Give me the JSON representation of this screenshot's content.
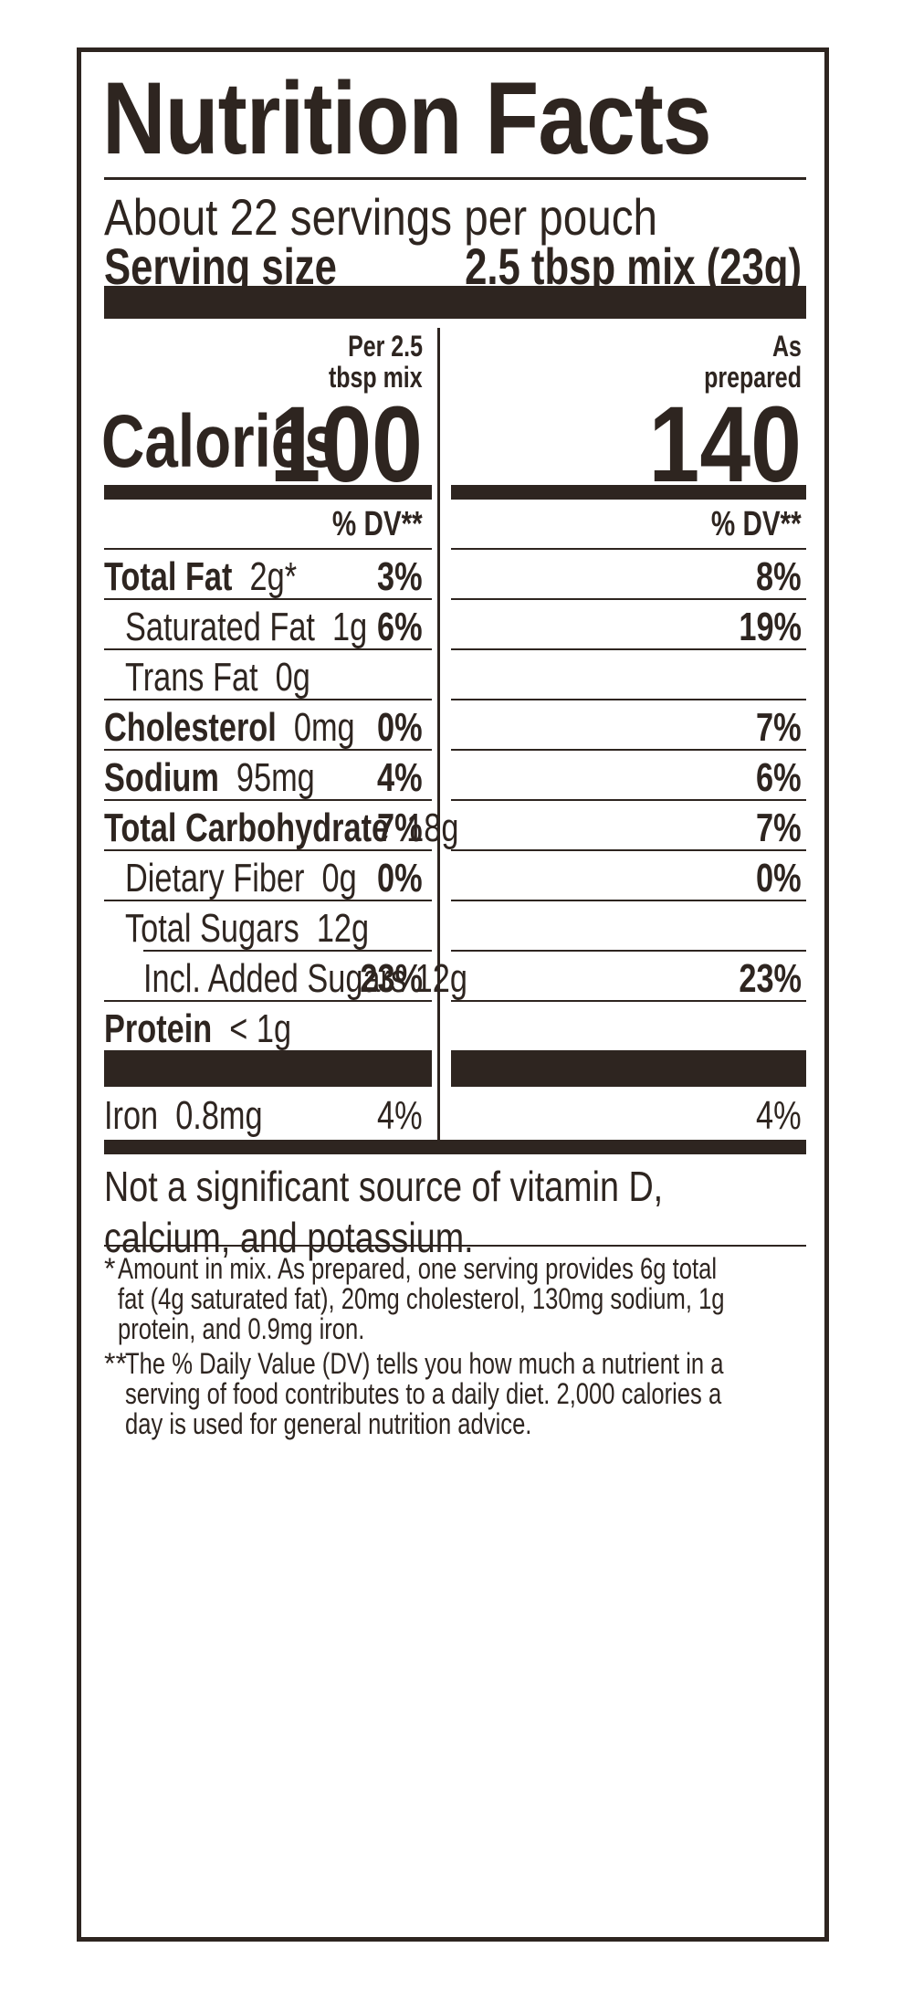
{
  "title": "Nutrition Facts",
  "servings_per_container": "About 22 servings per pouch",
  "serving_size": {
    "label": "Serving size",
    "value": "2.5 tbsp mix (23g)"
  },
  "columns": {
    "per_mix": {
      "header_line1": "Per 2.5",
      "header_line2": "tbsp mix",
      "calories": "100",
      "dv_header": "% DV**"
    },
    "prepared": {
      "header_line1": "As",
      "header_line2": "prepared",
      "calories": "140",
      "dv_header": "% DV**"
    }
  },
  "calories_label": "Calories",
  "nutrients": [
    {
      "name": "Total Fat",
      "amount": "2g*",
      "dv_mix": "3%",
      "dv_prepared": "8%"
    },
    {
      "name": "Saturated Fat",
      "amount": "1g",
      "dv_mix": "6%",
      "dv_prepared": "19%"
    },
    {
      "name": "Trans Fat",
      "amount": "0g",
      "dv_mix": "",
      "dv_prepared": ""
    },
    {
      "name": "Cholesterol",
      "amount": "0mg",
      "dv_mix": "0%",
      "dv_prepared": "7%"
    },
    {
      "name": "Sodium",
      "amount": "95mg",
      "dv_mix": "4%",
      "dv_prepared": "6%"
    },
    {
      "name": "Total Carbohydrate",
      "amount": "18g",
      "dv_mix": "7%",
      "dv_prepared": "7%"
    },
    {
      "name": "Dietary Fiber",
      "amount": "0g",
      "dv_mix": "0%",
      "dv_prepared": "0%"
    },
    {
      "name": "Total Sugars",
      "amount": "12g",
      "dv_mix": "",
      "dv_prepared": ""
    },
    {
      "name": "Incl. Added Sugars",
      "amount": "12g",
      "dv_mix": "23%",
      "dv_prepared": "23%"
    },
    {
      "name": "Protein",
      "amount": "< 1g",
      "dv_mix": "",
      "dv_prepared": ""
    }
  ],
  "vitamins": [
    {
      "name": "Iron",
      "amount": "0.8mg",
      "dv_mix": "4%",
      "dv_prepared": "4%"
    }
  ],
  "not_significant": {
    "line1": "Not a significant source of vitamin D,",
    "line2": "calcium, and potassium."
  },
  "footnotes": {
    "f1_marker": "*",
    "f1_line1": "Amount in mix. As prepared, one serving provides 6g total",
    "f1_line2": "fat (4g saturated fat), 20mg cholesterol, 130mg sodium, 1g",
    "f1_line3": "protein, and 0.9mg iron.",
    "f2_marker": "**",
    "f2_line1": "The % Daily Value (DV) tells you how much a nutrient in a",
    "f2_line2": "serving of food contributes to a daily diet. 2,000 calories a",
    "f2_line3": "day is used for general nutrition advice."
  },
  "colors": {
    "ink": "#2e2520",
    "background": "#ffffff"
  }
}
